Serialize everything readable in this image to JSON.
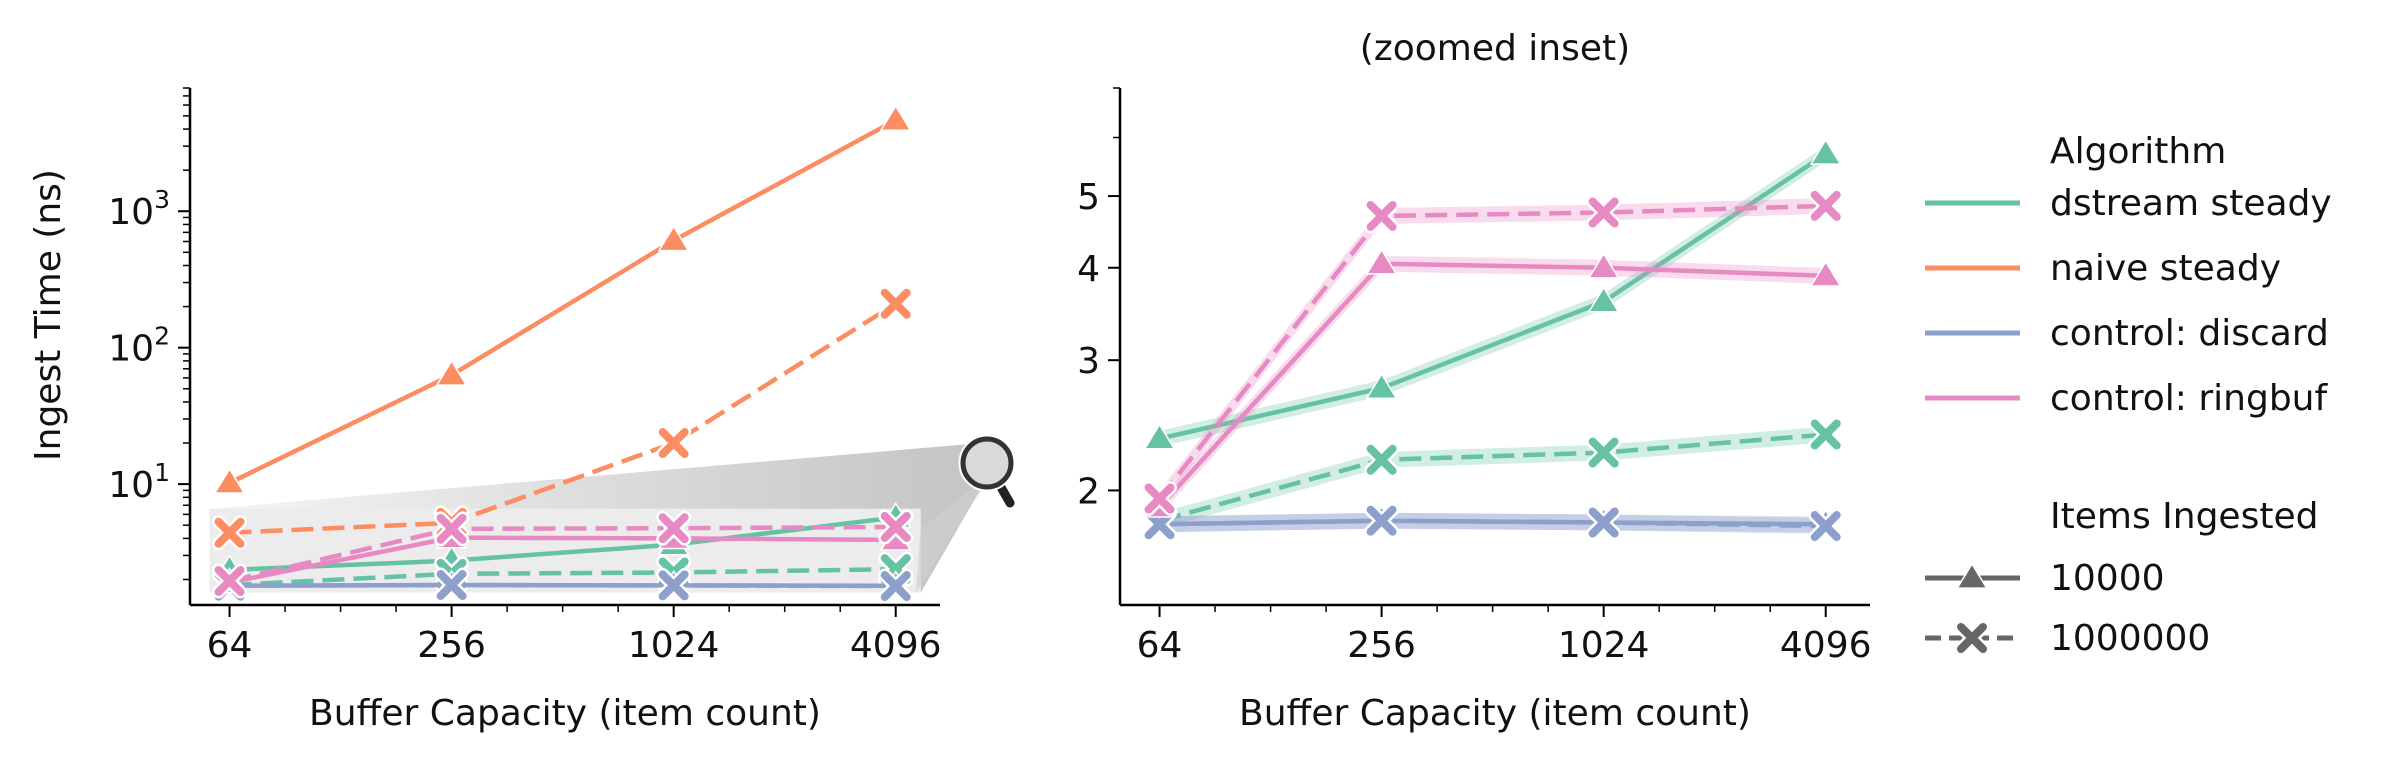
{
  "chart_data": [
    {
      "type": "line",
      "title": "",
      "xlabel": "Buffer Capacity (item count)",
      "ylabel": "Ingest Time (ns)",
      "xscale": "log2",
      "yscale": "log10",
      "x": [
        64,
        256,
        1024,
        4096
      ],
      "xticks": [
        "64",
        "256",
        "1024",
        "4096"
      ],
      "yticks": [
        {
          "base": "10",
          "exp": "1",
          "value": 10
        },
        {
          "base": "10",
          "exp": "2",
          "value": 100
        },
        {
          "base": "10",
          "exp": "3",
          "value": 1000
        }
      ],
      "ylim": [
        1.3,
        8000
      ],
      "zoom_region": {
        "xlim": [
          64,
          4096
        ],
        "ylim": [
          1.6,
          6.6
        ]
      },
      "zoom-icon": "magnifier-icon",
      "series": [
        {
          "algorithm": "naive steady",
          "items": "10000",
          "values": [
            10.2,
            63,
            610,
            4650
          ]
        },
        {
          "algorithm": "naive steady",
          "items": "1000000",
          "values": [
            4.4,
            5.2,
            20,
            210
          ]
        },
        {
          "algorithm": "dstream steady",
          "items": "10000",
          "values": [
            2.35,
            2.75,
            3.6,
            5.7
          ]
        },
        {
          "algorithm": "dstream steady",
          "items": "1000000",
          "values": [
            1.82,
            2.2,
            2.25,
            2.38
          ]
        },
        {
          "algorithm": "control: discard",
          "items": "10000",
          "values": [
            1.8,
            1.82,
            1.81,
            1.8
          ]
        },
        {
          "algorithm": "control: discard",
          "items": "1000000",
          "values": [
            1.8,
            1.82,
            1.81,
            1.79
          ]
        },
        {
          "algorithm": "control: ringbuf",
          "items": "10000",
          "values": [
            1.9,
            4.05,
            4.0,
            3.9
          ]
        },
        {
          "algorithm": "control: ringbuf",
          "items": "1000000",
          "values": [
            1.95,
            4.7,
            4.75,
            4.85
          ]
        }
      ]
    },
    {
      "type": "line",
      "title": "(zoomed inset)",
      "xlabel": "Buffer Capacity (item count)",
      "ylabel": "",
      "xscale": "log2",
      "yscale": "log10",
      "x": [
        64,
        256,
        1024,
        4096
      ],
      "xticks": [
        "64",
        "256",
        "1024",
        "4096"
      ],
      "yticks": [
        {
          "label": "2",
          "value": 2
        },
        {
          "label": "3",
          "value": 3
        },
        {
          "label": "4",
          "value": 4
        },
        {
          "label": "5",
          "value": 5
        }
      ],
      "ylim": [
        1.4,
        7.0
      ],
      "series": [
        {
          "algorithm": "dstream steady",
          "items": "10000",
          "values": [
            2.35,
            2.75,
            3.6,
            5.7
          ]
        },
        {
          "algorithm": "dstream steady",
          "items": "1000000",
          "values": [
            1.82,
            2.2,
            2.25,
            2.38
          ]
        },
        {
          "algorithm": "control: discard",
          "items": "10000",
          "values": [
            1.8,
            1.82,
            1.81,
            1.8
          ]
        },
        {
          "algorithm": "control: discard",
          "items": "1000000",
          "values": [
            1.8,
            1.82,
            1.81,
            1.79
          ]
        },
        {
          "algorithm": "control: ringbuf",
          "items": "10000",
          "values": [
            1.9,
            4.05,
            4.0,
            3.9
          ]
        },
        {
          "algorithm": "control: ringbuf",
          "items": "1000000",
          "values": [
            1.95,
            4.7,
            4.75,
            4.85
          ]
        }
      ]
    }
  ],
  "legend": {
    "placement": "right",
    "algorithm_title": "Algorithm",
    "algorithms": [
      {
        "name": "dstream steady",
        "color": "#66c2a5"
      },
      {
        "name": "naive steady",
        "color": "#fc8d62"
      },
      {
        "name": "control: discard",
        "color": "#8da0cb"
      },
      {
        "name": "control: ringbuf",
        "color": "#e78ac3"
      }
    ],
    "items_title": "Items Ingested",
    "items": [
      {
        "label": "10000",
        "marker": "triangle",
        "dash": "solid"
      },
      {
        "label": "1000000",
        "marker": "x",
        "dash": "dashed"
      }
    ],
    "marker_color": "#666666"
  }
}
